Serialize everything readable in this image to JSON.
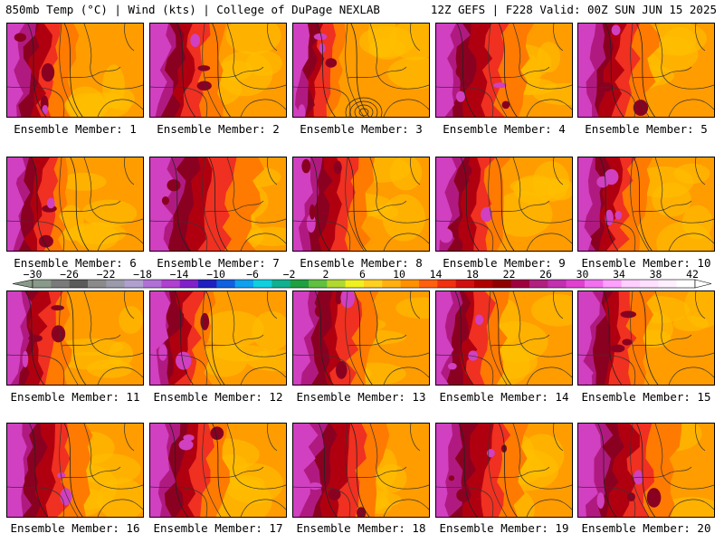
{
  "header": {
    "left": "850mb Temp (°C) | Wind (kts) | College of DuPage NEXLAB",
    "right": "12Z GEFS | F228 Valid: 00Z SUN JUN 15 2025"
  },
  "members": [
    {
      "label": "Ensemble Member: 1",
      "hot": 0.55,
      "west": 0.35
    },
    {
      "label": "Ensemble Member: 2",
      "hot": 0.6,
      "west": 0.38
    },
    {
      "label": "Ensemble Member: 3",
      "hot": 0.3,
      "west": 0.28,
      "low": true
    },
    {
      "label": "Ensemble Member: 4",
      "hot": 0.7,
      "west": 0.45
    },
    {
      "label": "Ensemble Member: 5",
      "hot": 0.55,
      "west": 0.4
    },
    {
      "label": "Ensemble Member: 6",
      "hot": 0.5,
      "west": 0.32
    },
    {
      "label": "Ensemble Member: 7",
      "hot": 0.75,
      "west": 0.52
    },
    {
      "label": "Ensemble Member: 8",
      "hot": 0.62,
      "west": 0.4
    },
    {
      "label": "Ensemble Member: 9",
      "hot": 0.58,
      "west": 0.36
    },
    {
      "label": "Ensemble Member: 10",
      "hot": 0.6,
      "west": 0.34
    },
    {
      "label": "Ensemble Member: 11",
      "hot": 0.55,
      "west": 0.33
    },
    {
      "label": "Ensemble Member: 12",
      "hot": 0.5,
      "west": 0.34
    },
    {
      "label": "Ensemble Member: 13",
      "hot": 0.65,
      "west": 0.42
    },
    {
      "label": "Ensemble Member: 14",
      "hot": 0.6,
      "west": 0.35
    },
    {
      "label": "Ensemble Member: 15",
      "hot": 0.62,
      "west": 0.36
    },
    {
      "label": "Ensemble Member: 16",
      "hot": 0.7,
      "west": 0.4
    },
    {
      "label": "Ensemble Member: 17",
      "hot": 0.55,
      "west": 0.42
    },
    {
      "label": "Ensemble Member: 18",
      "hot": 0.68,
      "west": 0.46
    },
    {
      "label": "Ensemble Member: 19",
      "hot": 0.7,
      "west": 0.44
    },
    {
      "label": "Ensemble Member: 20",
      "hot": 0.72,
      "west": 0.48
    }
  ],
  "colorbar": {
    "ticks": [
      "-30",
      "-26",
      "-22",
      "-18",
      "-14",
      "-10",
      "-6",
      "-2",
      "2",
      "6",
      "10",
      "14",
      "18",
      "22",
      "26",
      "30",
      "34",
      "38",
      "42"
    ],
    "colors": [
      "#8a9a8a",
      "#7a7a7a",
      "#5a5a5a",
      "#8a8a8a",
      "#9a9aaa",
      "#b0a0d0",
      "#b070d8",
      "#b040d0",
      "#8020c8",
      "#2020c0",
      "#1060e0",
      "#10a0f0",
      "#10d0e0",
      "#10b090",
      "#20a040",
      "#60c040",
      "#b0d830",
      "#f0f020",
      "#ffd020",
      "#ffb010",
      "#ff9000",
      "#ff6010",
      "#f03010",
      "#d01010",
      "#b00000",
      "#900000",
      "#a00040",
      "#b02080",
      "#c030b0",
      "#e040d0",
      "#f070f0",
      "#ffa0ff",
      "#ffd0ff",
      "#ffe0ff",
      "#fff0ff",
      "#ffffff"
    ],
    "palette": {
      "yellow": "#ffc000",
      "orange": "#ff9c00",
      "orange2": "#ff7a00",
      "red": "#f03020",
      "darkred": "#b00010",
      "maroon": "#8a0020",
      "magenta": "#b01a80",
      "pink": "#d040c0"
    }
  }
}
